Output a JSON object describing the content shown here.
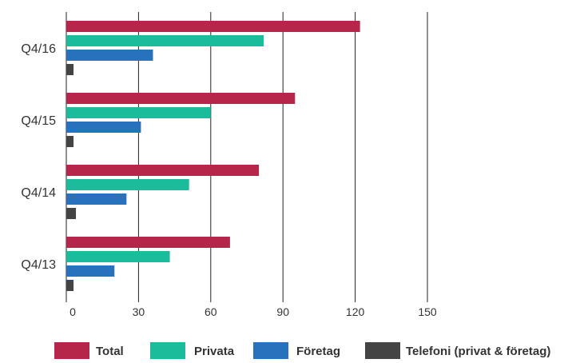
{
  "chart_data": {
    "type": "bar",
    "orientation": "horizontal",
    "categories": [
      "Q4/16",
      "Q4/15",
      "Q4/14",
      "Q4/13"
    ],
    "series": [
      {
        "name": "Total",
        "color": "#b5264a",
        "values": [
          122,
          95,
          80,
          68
        ]
      },
      {
        "name": "Privata",
        "color": "#1abc9c",
        "values": [
          82,
          60,
          51,
          43
        ]
      },
      {
        "name": "Företag",
        "color": "#2872bd",
        "values": [
          36,
          31,
          25,
          20
        ]
      },
      {
        "name": "Telefoni (privat & företag)",
        "color": "#444444",
        "values": [
          3,
          3,
          4,
          3
        ]
      }
    ],
    "xticks": [
      "0",
      "30",
      "60",
      "90",
      "120",
      "150"
    ],
    "xlim": [
      0,
      150
    ],
    "title": "",
    "xlabel": "",
    "ylabel": "",
    "grid": "vertical",
    "legend_position": "bottom"
  }
}
